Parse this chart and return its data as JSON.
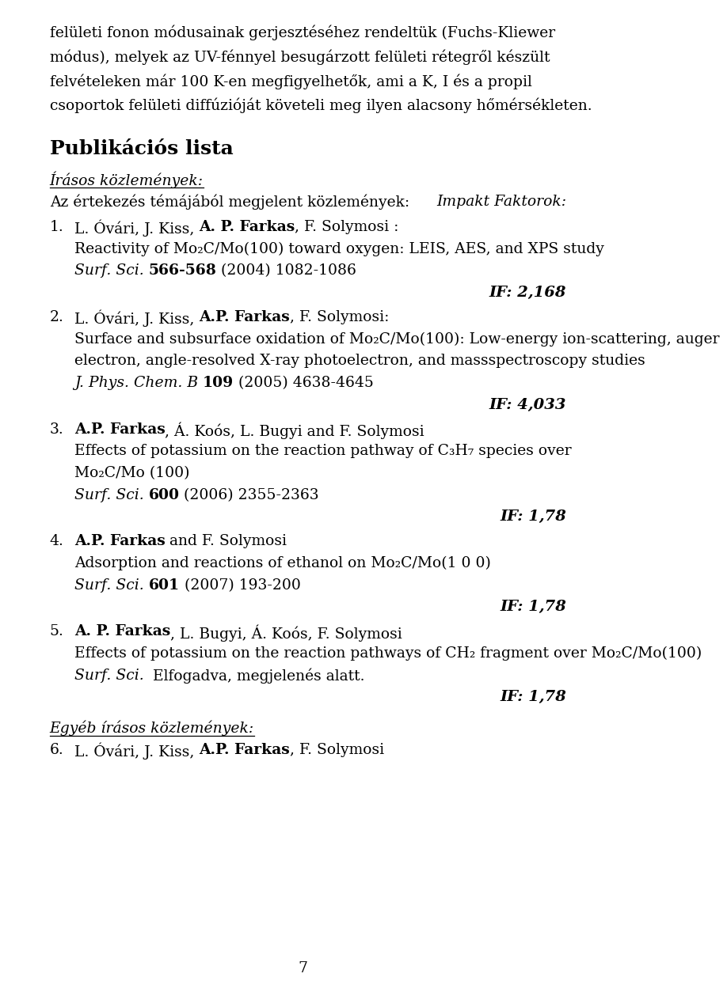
{
  "background_color": "#ffffff",
  "page_number": "7",
  "intro_text": [
    "felületi fonon módusainak gerjesztéséhez rendeltük (Fuchs-Kliewer",
    "módus), melyek az UV-fénnyel besugárzott felületi rétegről készült",
    "felvételeken már 100 K-en megfigyelhetők, ami a K, I és a propil",
    "csoportok felületi diffúzióját követeli meg ilyen alacsony hőmérsékleten."
  ],
  "section_title": "Publikációs lista",
  "subsection_title": "Írásos közlemények:",
  "subsection_subtitle_left": "Az értekezés témájából megjelent közlemények:",
  "subsection_subtitle_right": "Impakt Faktorok:",
  "entries": [
    {
      "number": "1.",
      "authors_parts": [
        {
          "text": "L. Óvári, J. Kiss, ",
          "bold": false,
          "italic": false
        },
        {
          "text": "A. P. Farkas",
          "bold": true,
          "italic": false
        },
        {
          "text": ", F. Solymosi :",
          "bold": false,
          "italic": false
        }
      ],
      "title_lines": [
        "Reactivity of Mo₂C/Mo(100) toward oxygen: LEIS, AES, and XPS study"
      ],
      "journal_parts": [
        {
          "text": "Surf. Sci.",
          "bold": false,
          "italic": true
        },
        {
          "text": " ",
          "bold": false,
          "italic": false
        },
        {
          "text": "566-568",
          "bold": true,
          "italic": false
        },
        {
          "text": " (2004) 1082-1086",
          "bold": false,
          "italic": false
        }
      ],
      "if_value": "IF: 2,168"
    },
    {
      "number": "2.",
      "authors_parts": [
        {
          "text": "L. Óvári, J. Kiss, ",
          "bold": false,
          "italic": false
        },
        {
          "text": "A.P. Farkas",
          "bold": true,
          "italic": false
        },
        {
          "text": ", F. Solymosi:",
          "bold": false,
          "italic": false
        }
      ],
      "title_lines": [
        "Surface and subsurface oxidation of Mo₂C/Mo(100): Low-energy ion-scattering, auger",
        "electron, angle-resolved X-ray photoelectron, and massspectroscopy studies"
      ],
      "journal_parts": [
        {
          "text": "J. Phys. Chem. B",
          "bold": false,
          "italic": true
        },
        {
          "text": " ",
          "bold": false,
          "italic": false
        },
        {
          "text": "109",
          "bold": true,
          "italic": false
        },
        {
          "text": " (2005) 4638-4645",
          "bold": false,
          "italic": false
        }
      ],
      "if_value": "IF: 4,033"
    },
    {
      "number": "3.",
      "authors_parts": [
        {
          "text": "A.P. Farkas",
          "bold": true,
          "italic": false
        },
        {
          "text": ", Á. Koós, L. Bugyi and F. Solymosi",
          "bold": false,
          "italic": false
        }
      ],
      "title_lines": [
        "Effects of potassium on the reaction pathway of C₃H₇ species over",
        "Mo₂C/Mo (100)"
      ],
      "journal_parts": [
        {
          "text": "Surf. Sci.",
          "bold": false,
          "italic": true
        },
        {
          "text": " ",
          "bold": false,
          "italic": false
        },
        {
          "text": "600",
          "bold": true,
          "italic": false
        },
        {
          "text": " (2006) 2355-2363",
          "bold": false,
          "italic": false
        }
      ],
      "if_value": "IF: 1,78"
    },
    {
      "number": "4.",
      "authors_parts": [
        {
          "text": "A.P. Farkas",
          "bold": true,
          "italic": false
        },
        {
          "text": " and F. Solymosi",
          "bold": false,
          "italic": false
        }
      ],
      "title_lines": [
        "Adsorption and reactions of ethanol on Mo₂C/Mo(1 0 0)"
      ],
      "journal_parts": [
        {
          "text": "Surf. Sci.",
          "bold": false,
          "italic": true
        },
        {
          "text": " ",
          "bold": false,
          "italic": false
        },
        {
          "text": "601",
          "bold": true,
          "italic": false
        },
        {
          "text": " (2007) 193-200",
          "bold": false,
          "italic": false
        }
      ],
      "if_value": "IF: 1,78"
    },
    {
      "number": "5.",
      "authors_parts": [
        {
          "text": "A. P. Farkas",
          "bold": true,
          "italic": false
        },
        {
          "text": ", L. Bugyi, Á. Koós, F. Solymosi",
          "bold": false,
          "italic": false
        }
      ],
      "title_lines": [
        "Effects of potassium on the reaction pathways of CH₂ fragment over Mo₂C/Mo(100)"
      ],
      "journal_parts": [
        {
          "text": "Surf. Sci.",
          "bold": false,
          "italic": true
        },
        {
          "text": "  Elfogadva, megjelenés alatt.",
          "bold": false,
          "italic": false
        }
      ],
      "if_value": "IF: 1,78"
    }
  ],
  "other_section_title": "Egyéb írásos közlemények:",
  "entry6_number": "6.",
  "entry6_authors_parts": [
    {
      "text": "L. Óvári, J. Kiss, ",
      "bold": false,
      "italic": false
    },
    {
      "text": "A.P. Farkas",
      "bold": true,
      "italic": false
    },
    {
      "text": ", F. Solymosi",
      "bold": false,
      "italic": false
    }
  ]
}
